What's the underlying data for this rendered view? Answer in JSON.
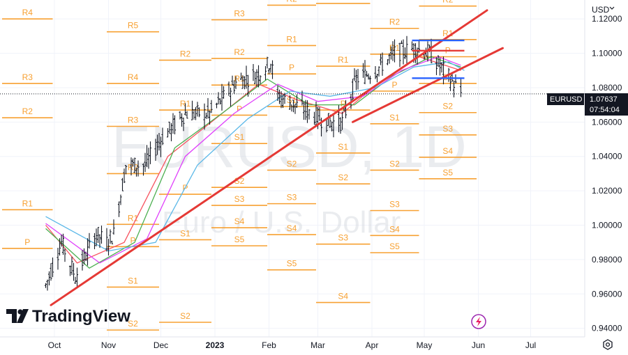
{
  "chart_data": {
    "type": "candlestick",
    "symbol": "EURUSD",
    "timeframe": "1D",
    "description": "Euro / U.S. Dollar",
    "currency": "USD",
    "last_price": "1.07637",
    "countdown": "07:54:04",
    "brand": "TradingView",
    "y_ticks": [
      "1.12000",
      "1.10000",
      "1.08000",
      "1.06000",
      "1.04000",
      "1.02000",
      "1.00000",
      "0.98000",
      "0.96000",
      "0.94000"
    ],
    "x_ticks": [
      "Oct",
      "Nov",
      "Dec",
      "2023",
      "Feb",
      "Mar",
      "Apr",
      "May",
      "Jun",
      "Jul"
    ],
    "ylim": [
      0.935,
      1.131
    ],
    "grid": true,
    "price_samples": [
      {
        "x": "2022-09-26",
        "y": 0.965
      },
      {
        "x": "2022-10-05",
        "y": 0.99
      },
      {
        "x": "2022-10-13",
        "y": 0.97
      },
      {
        "x": "2022-10-25",
        "y": 0.995
      },
      {
        "x": "2022-10-31",
        "y": 0.99
      },
      {
        "x": "2022-11-04",
        "y": 0.995
      },
      {
        "x": "2022-11-11",
        "y": 1.035
      },
      {
        "x": "2022-11-22",
        "y": 1.035
      },
      {
        "x": "2022-12-01",
        "y": 1.05
      },
      {
        "x": "2022-12-15",
        "y": 1.065
      },
      {
        "x": "2022-12-29",
        "y": 1.065
      },
      {
        "x": "2023-01-13",
        "y": 1.083
      },
      {
        "x": "2023-01-26",
        "y": 1.088
      },
      {
        "x": "2023-02-02",
        "y": 1.095
      },
      {
        "x": "2023-02-06",
        "y": 1.075
      },
      {
        "x": "2023-02-20",
        "y": 1.068
      },
      {
        "x": "2023-03-06",
        "y": 1.06
      },
      {
        "x": "2023-03-15",
        "y": 1.06
      },
      {
        "x": "2023-03-23",
        "y": 1.085
      },
      {
        "x": "2023-04-03",
        "y": 1.09
      },
      {
        "x": "2023-04-14",
        "y": 1.1
      },
      {
        "x": "2023-04-26",
        "y": 1.103
      },
      {
        "x": "2023-05-04",
        "y": 1.1
      },
      {
        "x": "2023-05-12",
        "y": 1.09
      },
      {
        "x": "2023-05-22",
        "y": 1.077
      }
    ],
    "moving_averages": [
      {
        "color": "#f7525f",
        "points": [
          {
            "x": "2022-09-26",
            "y": 1.0
          },
          {
            "x": "2022-10-14",
            "y": 0.978
          },
          {
            "x": "2022-11-10",
            "y": 0.99
          },
          {
            "x": "2022-12-05",
            "y": 1.04
          },
          {
            "x": "2022-12-30",
            "y": 1.06
          },
          {
            "x": "2023-01-26",
            "y": 1.082
          },
          {
            "x": "2023-02-17",
            "y": 1.073
          },
          {
            "x": "2023-03-15",
            "y": 1.065
          },
          {
            "x": "2023-04-05",
            "y": 1.083
          },
          {
            "x": "2023-04-28",
            "y": 1.098
          },
          {
            "x": "2023-05-22",
            "y": 1.09
          }
        ]
      },
      {
        "color": "#4caf50",
        "points": [
          {
            "x": "2022-09-26",
            "y": 0.998
          },
          {
            "x": "2022-10-21",
            "y": 0.975
          },
          {
            "x": "2022-11-16",
            "y": 0.99
          },
          {
            "x": "2022-12-09",
            "y": 1.045
          },
          {
            "x": "2023-01-05",
            "y": 1.065
          },
          {
            "x": "2023-01-31",
            "y": 1.085
          },
          {
            "x": "2023-02-24",
            "y": 1.07
          },
          {
            "x": "2023-03-22",
            "y": 1.07
          },
          {
            "x": "2023-04-13",
            "y": 1.087
          },
          {
            "x": "2023-05-05",
            "y": 1.098
          },
          {
            "x": "2023-05-22",
            "y": 1.092
          }
        ]
      },
      {
        "color": "#e040fb",
        "points": [
          {
            "x": "2022-09-26",
            "y": 1.001
          },
          {
            "x": "2022-10-27",
            "y": 0.978
          },
          {
            "x": "2022-11-23",
            "y": 0.992
          },
          {
            "x": "2022-12-15",
            "y": 1.04
          },
          {
            "x": "2023-01-12",
            "y": 1.065
          },
          {
            "x": "2023-02-06",
            "y": 1.082
          },
          {
            "x": "2023-03-01",
            "y": 1.072
          },
          {
            "x": "2023-03-27",
            "y": 1.075
          },
          {
            "x": "2023-04-18",
            "y": 1.09
          },
          {
            "x": "2023-05-09",
            "y": 1.098
          },
          {
            "x": "2023-05-22",
            "y": 1.093
          }
        ]
      },
      {
        "color": "#5bb8e8",
        "points": [
          {
            "x": "2022-09-26",
            "y": 1.005
          },
          {
            "x": "2022-11-01",
            "y": 0.985
          },
          {
            "x": "2022-11-28",
            "y": 0.99
          },
          {
            "x": "2022-12-22",
            "y": 1.035
          },
          {
            "x": "2023-01-20",
            "y": 1.062
          },
          {
            "x": "2023-02-13",
            "y": 1.078
          },
          {
            "x": "2023-03-08",
            "y": 1.075
          },
          {
            "x": "2023-04-03",
            "y": 1.08
          },
          {
            "x": "2023-04-25",
            "y": 1.092
          },
          {
            "x": "2023-05-15",
            "y": 1.095
          },
          {
            "x": "2023-05-24",
            "y": 1.09
          }
        ]
      }
    ],
    "trend_lines": [
      {
        "x1": "2022-09-29",
        "y1": 0.9535,
        "x2": "2023-06-06",
        "y2": 1.125
      },
      {
        "x1": "2023-03-21",
        "y1": 1.06,
        "x2": "2023-06-15",
        "y2": 1.103
      }
    ],
    "channel_lines": [
      {
        "x1": "2023-04-24",
        "x2": "2023-05-24",
        "y": 1.1075,
        "color": "#2962ff"
      },
      {
        "x1": "2023-04-24",
        "x2": "2023-05-24",
        "y": 1.1015,
        "color": "#e53935"
      },
      {
        "x1": "2023-04-24",
        "x2": "2023-05-24",
        "y": 1.0855,
        "color": "#2962ff"
      }
    ],
    "pivot_levels": [
      {
        "label": "R4",
        "x1": "2022-09-01",
        "x2": "2022-09-30",
        "y": 1.12
      },
      {
        "label": "R3",
        "x1": "2022-09-01",
        "x2": "2022-09-30",
        "y": 1.0825
      },
      {
        "label": "R2",
        "x1": "2022-09-01",
        "x2": "2022-09-30",
        "y": 1.0625
      },
      {
        "label": "R1",
        "x1": "2022-09-01",
        "x2": "2022-09-30",
        "y": 1.009
      },
      {
        "label": "P",
        "x1": "2022-09-01",
        "x2": "2022-09-30",
        "y": 0.9865
      },
      {
        "label": "R5",
        "x1": "2022-10-31",
        "x2": "2022-11-30",
        "y": 1.1125
      },
      {
        "label": "R4",
        "x1": "2022-10-31",
        "x2": "2022-11-30",
        "y": 1.0825
      },
      {
        "label": "R3",
        "x1": "2022-10-31",
        "x2": "2022-11-30",
        "y": 1.0575
      },
      {
        "label": "R2",
        "x1": "2022-10-31",
        "x2": "2022-11-30",
        "y": 1.03
      },
      {
        "label": "R1",
        "x1": "2022-10-31",
        "x2": "2022-11-30",
        "y": 1.0005
      },
      {
        "label": "P",
        "x1": "2022-10-31",
        "x2": "2022-11-30",
        "y": 0.9875
      },
      {
        "label": "S1",
        "x1": "2022-10-31",
        "x2": "2022-11-30",
        "y": 0.964
      },
      {
        "label": "S2",
        "x1": "2022-10-31",
        "x2": "2022-11-30",
        "y": 0.939
      },
      {
        "label": "R2",
        "x1": "2022-11-30",
        "x2": "2022-12-30",
        "y": 1.096
      },
      {
        "label": "R1",
        "x1": "2022-11-30",
        "x2": "2022-12-30",
        "y": 1.067
      },
      {
        "label": "P",
        "x1": "2022-11-30",
        "x2": "2022-12-30",
        "y": 1.018
      },
      {
        "label": "S1",
        "x1": "2022-11-30",
        "x2": "2022-12-30",
        "y": 0.9915
      },
      {
        "label": "S2",
        "x1": "2022-11-30",
        "x2": "2022-12-30",
        "y": 0.9435
      },
      {
        "label": "R3",
        "x1": "2022-12-30",
        "x2": "2023-01-31",
        "y": 1.1195
      },
      {
        "label": "R2",
        "x1": "2022-12-30",
        "x2": "2023-01-31",
        "y": 1.097
      },
      {
        "label": "R1",
        "x1": "2022-12-30",
        "x2": "2023-01-31",
        "y": 1.0815
      },
      {
        "label": "P",
        "x1": "2022-12-30",
        "x2": "2023-01-31",
        "y": 1.064
      },
      {
        "label": "S1",
        "x1": "2022-12-30",
        "x2": "2023-01-31",
        "y": 1.0475
      },
      {
        "label": "S2",
        "x1": "2022-12-30",
        "x2": "2023-01-31",
        "y": 1.022
      },
      {
        "label": "S3",
        "x1": "2022-12-30",
        "x2": "2023-01-31",
        "y": 1.0115
      },
      {
        "label": "S4",
        "x1": "2022-12-30",
        "x2": "2023-01-31",
        "y": 0.9985
      },
      {
        "label": "S5",
        "x1": "2022-12-30",
        "x2": "2023-01-31",
        "y": 0.988
      },
      {
        "label": "R2",
        "x1": "2023-01-31",
        "x2": "2023-02-28",
        "y": 1.128
      },
      {
        "label": "R1",
        "x1": "2023-01-31",
        "x2": "2023-02-28",
        "y": 1.1045
      },
      {
        "label": "P",
        "x1": "2023-01-31",
        "x2": "2023-02-28",
        "y": 1.088
      },
      {
        "label": "S1",
        "x1": "2023-01-31",
        "x2": "2023-02-28",
        "y": 1.069
      },
      {
        "label": "S2",
        "x1": "2023-01-31",
        "x2": "2023-02-28",
        "y": 1.032
      },
      {
        "label": "S3",
        "x1": "2023-01-31",
        "x2": "2023-02-28",
        "y": 1.0125
      },
      {
        "label": "S4",
        "x1": "2023-01-31",
        "x2": "2023-02-28",
        "y": 0.9945
      },
      {
        "label": "S5",
        "x1": "2023-01-31",
        "x2": "2023-02-28",
        "y": 0.974
      },
      {
        "label": "R2",
        "x1": "2023-02-28",
        "x2": "2023-03-31",
        "y": 1.129
      },
      {
        "label": "R1",
        "x1": "2023-02-28",
        "x2": "2023-03-31",
        "y": 1.0925
      },
      {
        "label": "P",
        "x1": "2023-02-28",
        "x2": "2023-03-31",
        "y": 1.067
      },
      {
        "label": "S1",
        "x1": "2023-02-28",
        "x2": "2023-03-31",
        "y": 1.042
      },
      {
        "label": "S2",
        "x1": "2023-02-28",
        "x2": "2023-03-31",
        "y": 1.024
      },
      {
        "label": "S3",
        "x1": "2023-02-28",
        "x2": "2023-03-31",
        "y": 0.989
      },
      {
        "label": "S4",
        "x1": "2023-02-28",
        "x2": "2023-03-31",
        "y": 0.955
      },
      {
        "label": "R2",
        "x1": "2023-03-31",
        "x2": "2023-04-28",
        "y": 1.1145
      },
      {
        "label": "R1",
        "x1": "2023-03-31",
        "x2": "2023-04-28",
        "y": 1.0995
      },
      {
        "label": "P",
        "x1": "2023-03-31",
        "x2": "2023-04-28",
        "y": 1.078
      },
      {
        "label": "S1",
        "x1": "2023-03-31",
        "x2": "2023-04-28",
        "y": 1.059
      },
      {
        "label": "S2",
        "x1": "2023-03-31",
        "x2": "2023-04-28",
        "y": 1.032
      },
      {
        "label": "S3",
        "x1": "2023-03-31",
        "x2": "2023-04-28",
        "y": 1.0085
      },
      {
        "label": "S4",
        "x1": "2023-03-31",
        "x2": "2023-04-28",
        "y": 0.994
      },
      {
        "label": "S5",
        "x1": "2023-03-31",
        "x2": "2023-04-28",
        "y": 0.984
      },
      {
        "label": "R2",
        "x1": "2023-04-28",
        "x2": "2023-05-31",
        "y": 1.1275
      },
      {
        "label": "R1",
        "x1": "2023-04-28",
        "x2": "2023-05-31",
        "y": 1.108
      },
      {
        "label": "P",
        "x1": "2023-04-28",
        "x2": "2023-05-31",
        "y": 1.098
      },
      {
        "label": "S1",
        "x1": "2023-04-28",
        "x2": "2023-05-31",
        "y": 1.0825
      },
      {
        "label": "S2",
        "x1": "2023-04-28",
        "x2": "2023-05-31",
        "y": 1.0655
      },
      {
        "label": "S3",
        "x1": "2023-04-28",
        "x2": "2023-05-31",
        "y": 1.0525
      },
      {
        "label": "S4",
        "x1": "2023-04-28",
        "x2": "2023-05-31",
        "y": 1.0395
      },
      {
        "label": "S5",
        "x1": "2023-04-28",
        "x2": "2023-05-31",
        "y": 1.027
      }
    ],
    "colors": {
      "pivot": "#f7a031",
      "trend": "#e53935",
      "bars": "#131722",
      "price_line": "#131722"
    }
  }
}
